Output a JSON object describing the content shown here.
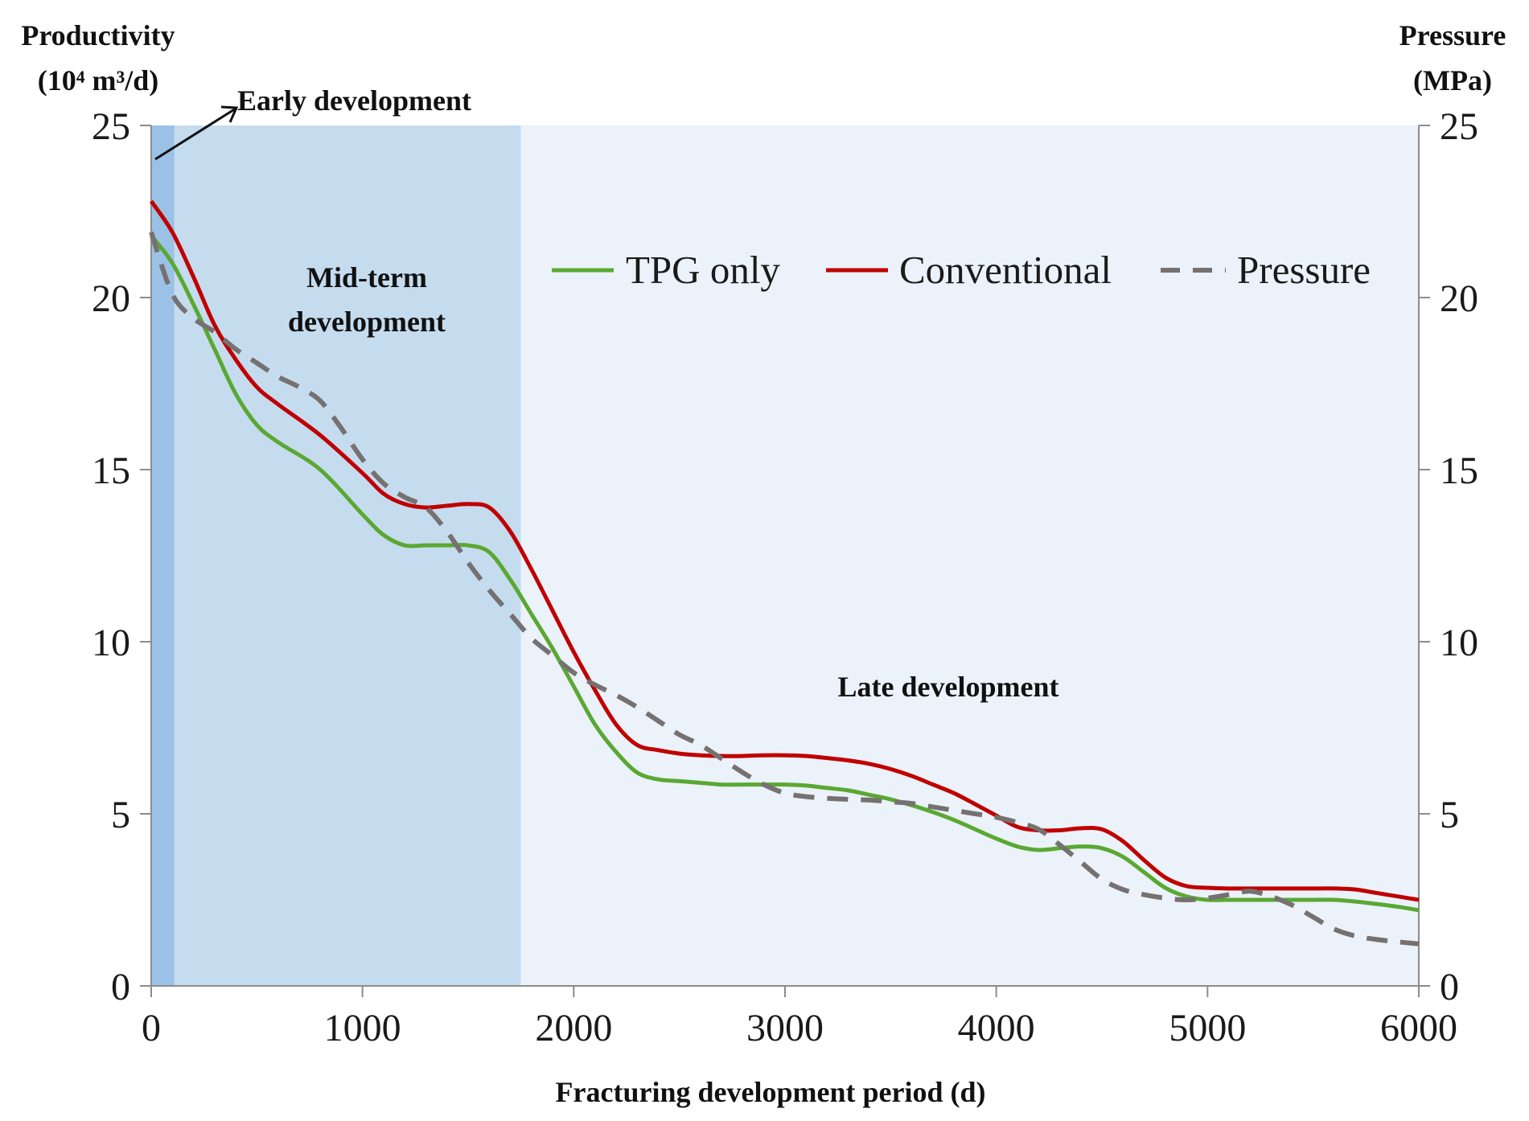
{
  "chart_data": {
    "type": "line",
    "title": "",
    "xlabel": "Fracturing development period (d)",
    "ylabel_left": [
      "Productivity",
      "(10⁴ m³/d)"
    ],
    "ylabel_right": [
      "Pressure",
      "(MPa)"
    ],
    "xlim": [
      0,
      6000
    ],
    "ylim": [
      0,
      25
    ],
    "x_ticks": [
      "0",
      "1000",
      "2000",
      "3000",
      "4000",
      "5000",
      "6000"
    ],
    "y_ticks": [
      "0",
      "5",
      "10",
      "15",
      "20",
      "25"
    ],
    "y2_ticks": [
      "0",
      "5",
      "10",
      "15",
      "20",
      "25"
    ],
    "grid": false,
    "legend_position": "top-right",
    "regions": [
      {
        "name": "early",
        "x0": 0,
        "x1": 110,
        "color": "#9bc2e6",
        "label": "Early development"
      },
      {
        "name": "mid",
        "x0": 110,
        "x1": 1750,
        "color": "#c5dcef",
        "label_lines": [
          "Mid-term",
          "development"
        ]
      },
      {
        "name": "late",
        "x0": 1750,
        "x1": 6000,
        "color": "#ebf2f9",
        "label": "Late development"
      }
    ],
    "series": [
      {
        "name": "TPG only",
        "color": "#5aa832",
        "dash": false,
        "x": [
          0,
          100,
          200,
          300,
          400,
          500,
          600,
          800,
          1000,
          1100,
          1200,
          1300,
          1400,
          1500,
          1600,
          1700,
          1800,
          1900,
          2000,
          2100,
          2200,
          2300,
          2400,
          2500,
          2600,
          2700,
          2800,
          2900,
          3000,
          3100,
          3200,
          3300,
          3400,
          3500,
          3600,
          3700,
          3800,
          3900,
          4000,
          4100,
          4200,
          4300,
          4400,
          4500,
          4600,
          4700,
          4800,
          4900,
          5000,
          5100,
          5200,
          5300,
          5400,
          5500,
          5600,
          5700,
          5800,
          5900,
          6000
        ],
        "values": [
          21.8,
          21.0,
          19.8,
          18.5,
          17.2,
          16.3,
          15.8,
          15.0,
          13.7,
          13.1,
          12.8,
          12.8,
          12.8,
          12.8,
          12.6,
          11.8,
          10.8,
          9.8,
          8.7,
          7.6,
          6.8,
          6.2,
          6.0,
          5.95,
          5.9,
          5.85,
          5.85,
          5.85,
          5.85,
          5.82,
          5.75,
          5.68,
          5.55,
          5.42,
          5.25,
          5.05,
          4.82,
          4.55,
          4.28,
          4.05,
          3.95,
          4.0,
          4.05,
          4.0,
          3.75,
          3.3,
          2.85,
          2.6,
          2.5,
          2.5,
          2.5,
          2.5,
          2.5,
          2.5,
          2.5,
          2.45,
          2.38,
          2.3,
          2.2
        ]
      },
      {
        "name": "Conventional",
        "color": "#c00000",
        "dash": false,
        "x": [
          0,
          100,
          200,
          300,
          400,
          500,
          600,
          800,
          1000,
          1100,
          1200,
          1300,
          1400,
          1500,
          1600,
          1700,
          1800,
          1900,
          2000,
          2100,
          2200,
          2300,
          2400,
          2500,
          2600,
          2700,
          2800,
          2900,
          3000,
          3100,
          3200,
          3300,
          3400,
          3500,
          3600,
          3700,
          3800,
          3900,
          4000,
          4100,
          4200,
          4300,
          4400,
          4500,
          4600,
          4700,
          4800,
          4900,
          5000,
          5100,
          5200,
          5300,
          5400,
          5500,
          5600,
          5700,
          5800,
          5900,
          6000
        ],
        "values": [
          22.8,
          21.9,
          20.6,
          19.2,
          18.2,
          17.4,
          16.9,
          16.0,
          14.9,
          14.3,
          14.0,
          13.9,
          13.95,
          14.0,
          13.9,
          13.2,
          12.1,
          10.9,
          9.7,
          8.6,
          7.6,
          7.0,
          6.85,
          6.75,
          6.7,
          6.68,
          6.68,
          6.7,
          6.7,
          6.68,
          6.62,
          6.55,
          6.45,
          6.3,
          6.1,
          5.85,
          5.6,
          5.28,
          4.95,
          4.62,
          4.52,
          4.52,
          4.58,
          4.55,
          4.2,
          3.65,
          3.15,
          2.9,
          2.85,
          2.83,
          2.83,
          2.83,
          2.83,
          2.83,
          2.83,
          2.8,
          2.7,
          2.6,
          2.5
        ]
      },
      {
        "name": "Pressure",
        "color": "#767171",
        "dash": true,
        "axis": "right",
        "x": [
          0,
          100,
          200,
          300,
          400,
          500,
          600,
          700,
          800,
          900,
          1000,
          1100,
          1200,
          1300,
          1400,
          1500,
          1600,
          1700,
          1800,
          1900,
          2000,
          2100,
          2200,
          2300,
          2400,
          2500,
          2600,
          2700,
          2800,
          2900,
          3000,
          3100,
          3200,
          3300,
          3400,
          3500,
          3600,
          3700,
          3800,
          3900,
          4000,
          4100,
          4200,
          4300,
          4400,
          4500,
          4600,
          4700,
          4800,
          4900,
          5000,
          5100,
          5200,
          5300,
          5400,
          5500,
          5600,
          5700,
          5800,
          5900,
          6000
        ],
        "values": [
          21.9,
          20.1,
          19.4,
          19.0,
          18.5,
          18.1,
          17.7,
          17.4,
          17.0,
          16.2,
          15.3,
          14.6,
          14.2,
          13.9,
          13.2,
          12.3,
          11.5,
          10.8,
          10.1,
          9.6,
          9.1,
          8.75,
          8.45,
          8.1,
          7.7,
          7.3,
          7.0,
          6.6,
          6.2,
          5.85,
          5.6,
          5.5,
          5.45,
          5.42,
          5.4,
          5.35,
          5.3,
          5.2,
          5.1,
          5.0,
          4.9,
          4.75,
          4.55,
          4.1,
          3.6,
          3.1,
          2.8,
          2.65,
          2.55,
          2.5,
          2.55,
          2.65,
          2.75,
          2.6,
          2.35,
          2.0,
          1.65,
          1.45,
          1.35,
          1.28,
          1.22
        ]
      }
    ]
  }
}
